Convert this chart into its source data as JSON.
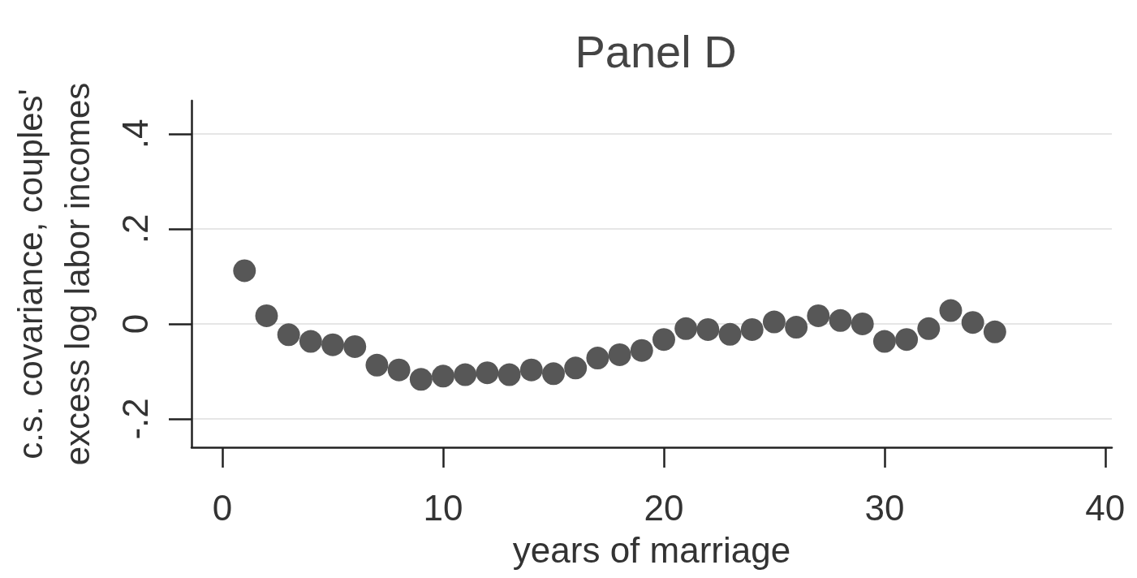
{
  "chart_data": {
    "type": "scatter",
    "title": "Panel D",
    "xlabel": "years of marriage",
    "ylabel": "c.s. covariance, couples' excess log labor incomes",
    "x": [
      1,
      2,
      3,
      4,
      5,
      6,
      7,
      8,
      9,
      10,
      11,
      12,
      13,
      14,
      15,
      16,
      17,
      18,
      19,
      20,
      21,
      22,
      23,
      24,
      25,
      26,
      27,
      28,
      29,
      30,
      31,
      32,
      33,
      34,
      35
    ],
    "series": [
      {
        "color": "#575757",
        "values": [
          0.112,
          0.017,
          -0.023,
          -0.037,
          -0.044,
          -0.048,
          -0.087,
          -0.097,
          -0.117,
          -0.11,
          -0.107,
          -0.103,
          -0.107,
          -0.097,
          -0.105,
          -0.093,
          -0.072,
          -0.065,
          -0.056,
          -0.033,
          -0.01,
          -0.012,
          -0.022,
          -0.012,
          0.004,
          -0.007,
          0.017,
          0.007,
          0.0,
          -0.037,
          -0.033,
          -0.01,
          0.028,
          0.003,
          -0.017
        ]
      }
    ],
    "xlim": [
      -1.4,
      40.3
    ],
    "xticks": [
      0,
      10,
      20,
      30,
      40
    ],
    "ylim": [
      -0.26,
      0.47
    ],
    "yticks": [
      {
        "value": -0.2,
        "label": "-.2"
      },
      0,
      {
        "value": 0.2,
        "label": ".2"
      },
      {
        "value": 0.4,
        "label": ".4"
      }
    ],
    "grid": "y",
    "marker": "circle"
  }
}
